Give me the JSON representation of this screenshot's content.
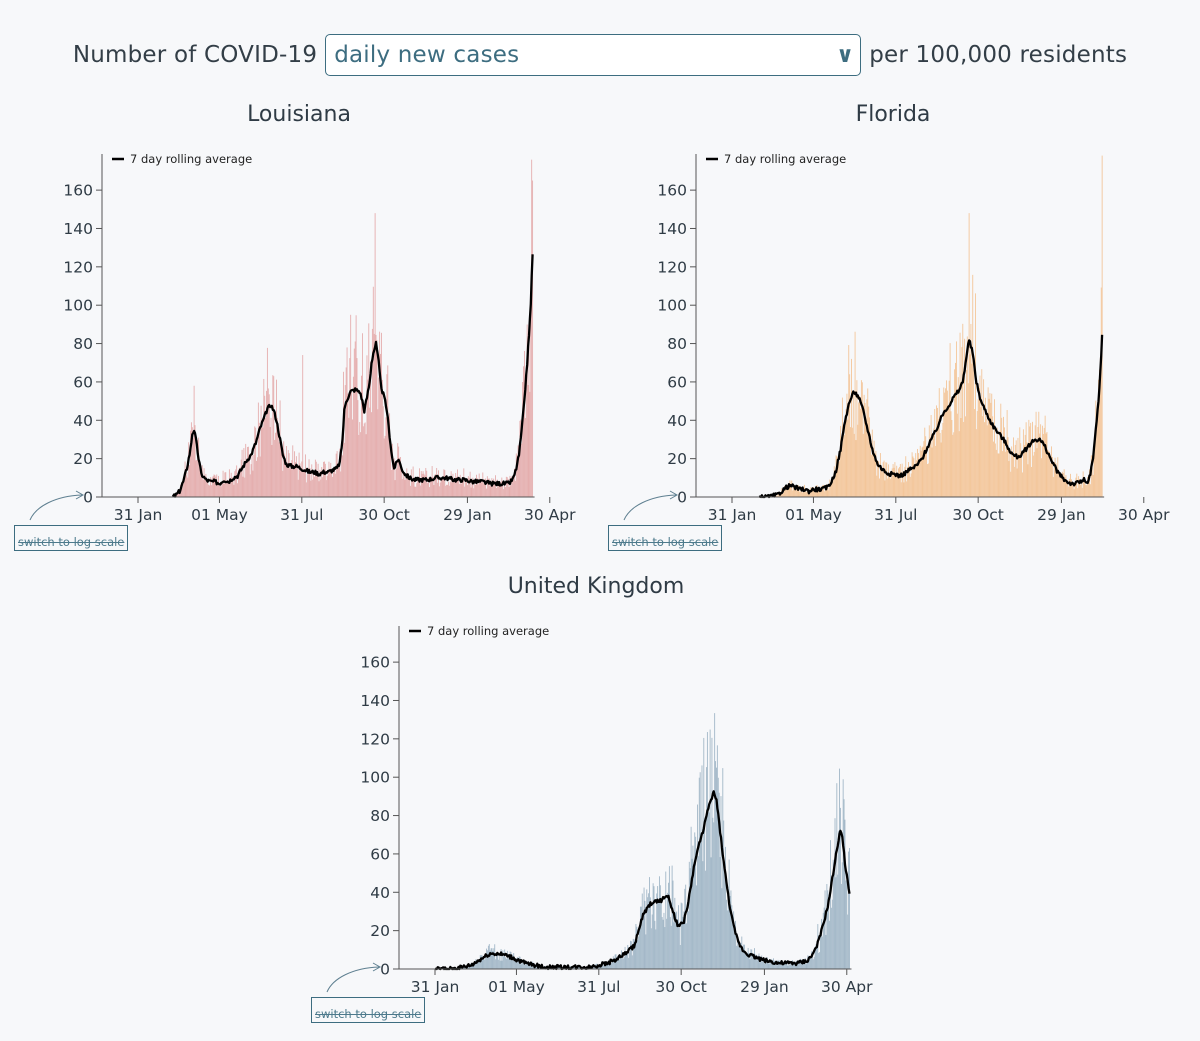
{
  "header": {
    "prefix": "Number of COVID-19",
    "metric_selected": "daily new cases",
    "suffix": "per 100,000 residents"
  },
  "log_button_label": "switch to log scale",
  "colors": {
    "louisiana": "#e5aeae",
    "florida": "#f3c69a",
    "uk": "#a3b8c8",
    "line": "#000000"
  },
  "chart_data": [
    {
      "type": "bar",
      "region": "louisiana",
      "title": "Louisiana",
      "legend": "7 day rolling average",
      "xlabel": "",
      "ylabel": "",
      "ylim": [
        0,
        170
      ],
      "yticks": [
        0,
        20,
        40,
        60,
        80,
        100,
        120,
        140,
        160
      ],
      "x_tick_labels": [
        "31 Jan",
        "01 May",
        "31 Jul",
        "30 Oct",
        "29 Jan",
        "30 Apr"
      ],
      "x_tick_days": [
        0,
        90,
        181,
        272,
        364,
        455
      ],
      "start_day": 38,
      "avg_keypoints": [
        [
          38,
          0
        ],
        [
          42,
          1
        ],
        [
          46,
          3
        ],
        [
          50,
          8
        ],
        [
          54,
          15
        ],
        [
          58,
          25
        ],
        [
          60,
          33
        ],
        [
          62,
          35
        ],
        [
          64,
          30
        ],
        [
          67,
          20
        ],
        [
          70,
          12
        ],
        [
          75,
          9
        ],
        [
          80,
          8
        ],
        [
          85,
          8
        ],
        [
          90,
          7
        ],
        [
          95,
          9
        ],
        [
          100,
          8
        ],
        [
          105,
          10
        ],
        [
          110,
          11
        ],
        [
          115,
          15
        ],
        [
          120,
          19
        ],
        [
          125,
          22
        ],
        [
          130,
          28
        ],
        [
          135,
          36
        ],
        [
          140,
          42
        ],
        [
          143,
          46
        ],
        [
          147,
          48
        ],
        [
          150,
          45
        ],
        [
          153,
          40
        ],
        [
          157,
          30
        ],
        [
          160,
          22
        ],
        [
          164,
          17
        ],
        [
          170,
          16
        ],
        [
          175,
          16
        ],
        [
          180,
          15
        ],
        [
          185,
          14
        ],
        [
          190,
          13
        ],
        [
          195,
          13
        ],
        [
          200,
          12
        ],
        [
          205,
          13
        ],
        [
          210,
          13
        ],
        [
          215,
          14
        ],
        [
          220,
          15
        ],
        [
          223,
          18
        ],
        [
          226,
          30
        ],
        [
          228,
          45
        ],
        [
          230,
          50
        ],
        [
          235,
          55
        ],
        [
          240,
          56
        ],
        [
          245,
          55
        ],
        [
          248,
          50
        ],
        [
          250,
          45
        ],
        [
          253,
          52
        ],
        [
          256,
          60
        ],
        [
          258,
          70
        ],
        [
          260,
          75
        ],
        [
          263,
          80
        ],
        [
          266,
          70
        ],
        [
          268,
          60
        ],
        [
          270,
          55
        ],
        [
          272,
          52
        ],
        [
          275,
          45
        ],
        [
          278,
          32
        ],
        [
          281,
          20
        ],
        [
          283,
          15
        ],
        [
          286,
          18
        ],
        [
          288,
          20
        ],
        [
          291,
          15
        ],
        [
          295,
          12
        ],
        [
          300,
          10
        ],
        [
          305,
          9
        ],
        [
          310,
          9
        ],
        [
          320,
          9
        ],
        [
          330,
          10
        ],
        [
          340,
          10
        ],
        [
          350,
          9
        ],
        [
          360,
          9
        ],
        [
          370,
          8
        ],
        [
          380,
          8
        ],
        [
          390,
          7
        ],
        [
          400,
          7
        ],
        [
          410,
          7
        ],
        [
          415,
          10
        ],
        [
          418,
          15
        ],
        [
          421,
          22
        ],
        [
          424,
          35
        ],
        [
          427,
          50
        ],
        [
          430,
          70
        ],
        [
          432,
          85
        ],
        [
          434,
          100
        ],
        [
          435,
          115
        ],
        [
          436,
          127
        ]
      ],
      "bar_peak_days": [
        [
          62,
          58
        ],
        [
          150,
          63
        ],
        [
          182,
          74
        ],
        [
          235,
          95
        ],
        [
          262,
          148
        ],
        [
          436,
          165
        ]
      ]
    },
    {
      "type": "bar",
      "region": "florida",
      "title": "Florida",
      "legend": "7 day rolling average",
      "xlabel": "",
      "ylabel": "",
      "ylim": [
        0,
        170
      ],
      "yticks": [
        0,
        20,
        40,
        60,
        80,
        100,
        120,
        140,
        160
      ],
      "x_tick_labels": [
        "31 Jan",
        "01 May",
        "31 Jul",
        "30 Oct",
        "29 Jan",
        "30 Apr"
      ],
      "x_tick_days": [
        0,
        90,
        181,
        272,
        364,
        455
      ],
      "start_day": 30,
      "avg_keypoints": [
        [
          30,
          0
        ],
        [
          40,
          0
        ],
        [
          50,
          1
        ],
        [
          55,
          3
        ],
        [
          60,
          5
        ],
        [
          65,
          6
        ],
        [
          70,
          5
        ],
        [
          75,
          4
        ],
        [
          80,
          4
        ],
        [
          85,
          3
        ],
        [
          90,
          4
        ],
        [
          95,
          4
        ],
        [
          100,
          4
        ],
        [
          105,
          5
        ],
        [
          110,
          8
        ],
        [
          115,
          14
        ],
        [
          120,
          25
        ],
        [
          125,
          40
        ],
        [
          130,
          50
        ],
        [
          135,
          55
        ],
        [
          140,
          52
        ],
        [
          145,
          45
        ],
        [
          150,
          35
        ],
        [
          155,
          25
        ],
        [
          160,
          18
        ],
        [
          165,
          15
        ],
        [
          170,
          13
        ],
        [
          175,
          12
        ],
        [
          180,
          12
        ],
        [
          185,
          11
        ],
        [
          190,
          12
        ],
        [
          195,
          14
        ],
        [
          200,
          15
        ],
        [
          205,
          17
        ],
        [
          210,
          20
        ],
        [
          215,
          25
        ],
        [
          220,
          30
        ],
        [
          225,
          34
        ],
        [
          230,
          40
        ],
        [
          235,
          45
        ],
        [
          240,
          48
        ],
        [
          245,
          52
        ],
        [
          250,
          55
        ],
        [
          255,
          60
        ],
        [
          258,
          70
        ],
        [
          262,
          82
        ],
        [
          266,
          75
        ],
        [
          270,
          60
        ],
        [
          275,
          50
        ],
        [
          280,
          45
        ],
        [
          285,
          40
        ],
        [
          290,
          36
        ],
        [
          295,
          33
        ],
        [
          300,
          30
        ],
        [
          305,
          26
        ],
        [
          310,
          22
        ],
        [
          315,
          21
        ],
        [
          320,
          22
        ],
        [
          325,
          25
        ],
        [
          330,
          28
        ],
        [
          335,
          30
        ],
        [
          340,
          30
        ],
        [
          345,
          27
        ],
        [
          350,
          22
        ],
        [
          355,
          17
        ],
        [
          360,
          13
        ],
        [
          365,
          10
        ],
        [
          370,
          8
        ],
        [
          375,
          7
        ],
        [
          380,
          7
        ],
        [
          385,
          8
        ],
        [
          390,
          9
        ],
        [
          393,
          7
        ],
        [
          396,
          12
        ],
        [
          399,
          20
        ],
        [
          402,
          35
        ],
        [
          405,
          50
        ],
        [
          407,
          65
        ],
        [
          409,
          84
        ]
      ],
      "bar_peak_days": [
        [
          132,
          72
        ],
        [
          262,
          148
        ],
        [
          409,
          178
        ]
      ]
    },
    {
      "type": "bar",
      "region": "uk",
      "title": "United Kingdom",
      "legend": "7 day rolling average",
      "xlabel": "",
      "ylabel": "",
      "ylim": [
        0,
        170
      ],
      "yticks": [
        0,
        20,
        40,
        60,
        80,
        100,
        120,
        140,
        160
      ],
      "x_tick_labels": [
        "31 Jan",
        "01 May",
        "31 Jul",
        "30 Oct",
        "29 Jan",
        "30 Apr"
      ],
      "x_tick_days": [
        0,
        90,
        181,
        272,
        364,
        455
      ],
      "start_day": 0,
      "avg_keypoints": [
        [
          0,
          0
        ],
        [
          20,
          0
        ],
        [
          30,
          1
        ],
        [
          40,
          2
        ],
        [
          50,
          5
        ],
        [
          60,
          8
        ],
        [
          70,
          8
        ],
        [
          80,
          7
        ],
        [
          90,
          5
        ],
        [
          100,
          3
        ],
        [
          110,
          2
        ],
        [
          120,
          1
        ],
        [
          130,
          1
        ],
        [
          140,
          1
        ],
        [
          150,
          1
        ],
        [
          160,
          1
        ],
        [
          170,
          1
        ],
        [
          180,
          2
        ],
        [
          190,
          3
        ],
        [
          200,
          5
        ],
        [
          210,
          8
        ],
        [
          220,
          12
        ],
        [
          225,
          20
        ],
        [
          230,
          28
        ],
        [
          235,
          32
        ],
        [
          240,
          35
        ],
        [
          245,
          35
        ],
        [
          250,
          36
        ],
        [
          255,
          38
        ],
        [
          258,
          37
        ],
        [
          262,
          32
        ],
        [
          266,
          25
        ],
        [
          270,
          22
        ],
        [
          275,
          25
        ],
        [
          280,
          35
        ],
        [
          285,
          50
        ],
        [
          290,
          62
        ],
        [
          295,
          70
        ],
        [
          300,
          80
        ],
        [
          305,
          88
        ],
        [
          308,
          92
        ],
        [
          311,
          88
        ],
        [
          315,
          72
        ],
        [
          320,
          52
        ],
        [
          325,
          35
        ],
        [
          330,
          22
        ],
        [
          335,
          14
        ],
        [
          340,
          10
        ],
        [
          345,
          8
        ],
        [
          350,
          7
        ],
        [
          360,
          5
        ],
        [
          370,
          4
        ],
        [
          380,
          3
        ],
        [
          390,
          3
        ],
        [
          400,
          3
        ],
        [
          410,
          4
        ],
        [
          415,
          6
        ],
        [
          420,
          10
        ],
        [
          425,
          16
        ],
        [
          430,
          25
        ],
        [
          435,
          35
        ],
        [
          440,
          50
        ],
        [
          445,
          65
        ],
        [
          448,
          72
        ],
        [
          450,
          70
        ],
        [
          453,
          55
        ],
        [
          456,
          45
        ],
        [
          458,
          40
        ]
      ],
      "bar_peak_days": [
        [
          60,
          13
        ],
        [
          311,
          105
        ],
        [
          448,
          84
        ]
      ]
    }
  ]
}
